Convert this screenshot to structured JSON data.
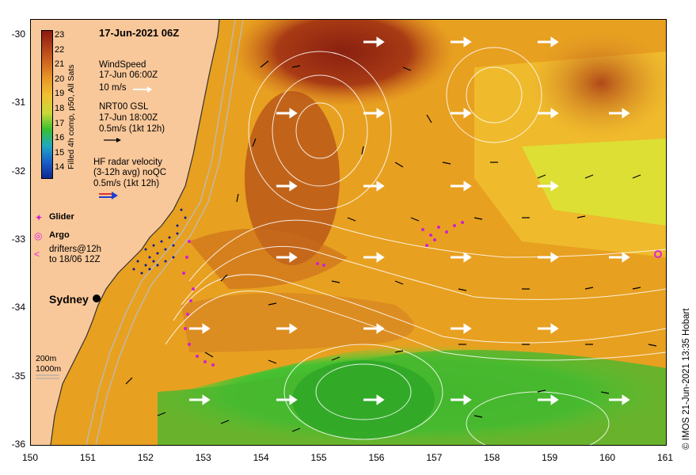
{
  "title": "17-Jun-2021 06Z",
  "colorbar": {
    "title": "Filled 4h comp, p50, All Sats",
    "labels": [
      "23",
      "22",
      "21",
      "20",
      "19",
      "18",
      "17",
      "16",
      "15",
      "14"
    ],
    "colors": [
      "#8a1a10",
      "#b04018",
      "#d06a20",
      "#e89a28",
      "#f0c030",
      "#c8d838",
      "#38c030",
      "#20a8c0",
      "#1860c8",
      "#102890"
    ]
  },
  "legend": {
    "wind_title": "WindSpeed",
    "wind_time": "17-Jun 06:00Z",
    "wind_scale": "10 m/s",
    "gsl_title": "NRT00 GSL",
    "gsl_time": "17-Jun 18:00Z",
    "gsl_scale": "0.5m/s (1kt 12h)",
    "hf_title": "HF radar velocity",
    "hf_sub": "(3-12h avg) noQC",
    "hf_scale": "0.5m/s (1kt 12h)",
    "glider": "Glider",
    "argo": "Argo",
    "drifters_1": "drifters@12h",
    "drifters_2": "to 18/06 12Z",
    "depth_200": "200m",
    "depth_1000": "1000m"
  },
  "city": "Sydney",
  "copyright": "© IMOS 21-Jun-2021 13:35 Hobart",
  "axes": {
    "x_ticks": [
      "150",
      "151",
      "152",
      "153",
      "154",
      "155",
      "156",
      "157",
      "158",
      "159",
      "160",
      "161"
    ],
    "y_ticks": [
      "-30",
      "-31",
      "-32",
      "-33",
      "-34",
      "-35",
      "-36"
    ]
  },
  "colors": {
    "land": "#f9c89a",
    "warm_core": "#8a2a10",
    "ocean_mid": "#e8a020",
    "ocean_warm": "#d07820",
    "cool_water": "#38c030",
    "light_green": "#d8e830",
    "glider": "#d020d0",
    "argo": "#e020e0"
  }
}
